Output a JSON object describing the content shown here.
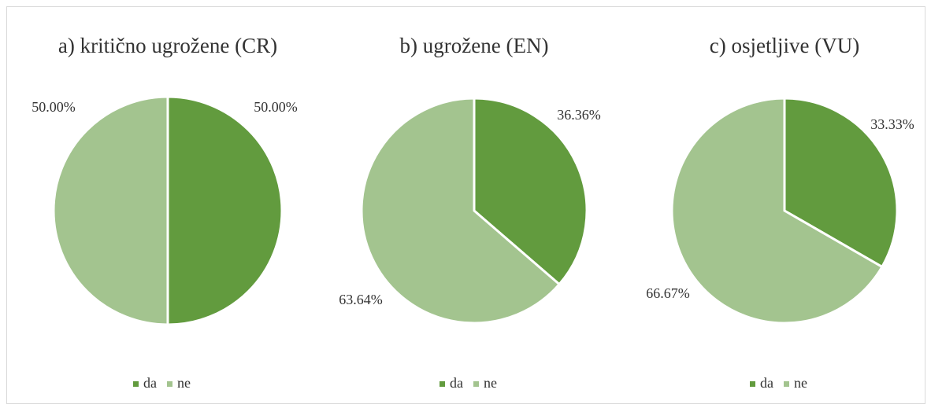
{
  "chart_data": [
    {
      "type": "pie",
      "title": "a) kritično ugrožene (CR)",
      "categories": [
        "da",
        "ne"
      ],
      "values": [
        50,
        50
      ],
      "value_labels": [
        "50.00%",
        "50.00%"
      ],
      "colors": [
        "#629b3e",
        "#a3c48f"
      ]
    },
    {
      "type": "pie",
      "title": "b) ugrožene (EN)",
      "categories": [
        "da",
        "ne"
      ],
      "values": [
        36.36,
        63.64
      ],
      "value_labels": [
        "36.36%",
        "63.64%"
      ],
      "colors": [
        "#629b3e",
        "#a3c48f"
      ]
    },
    {
      "type": "pie",
      "title": "c) osjetljive (VU)",
      "categories": [
        "da",
        "ne"
      ],
      "values": [
        33.33,
        66.67
      ],
      "value_labels": [
        "33.33%",
        "66.67%"
      ],
      "colors": [
        "#629b3e",
        "#a3c48f"
      ]
    }
  ]
}
